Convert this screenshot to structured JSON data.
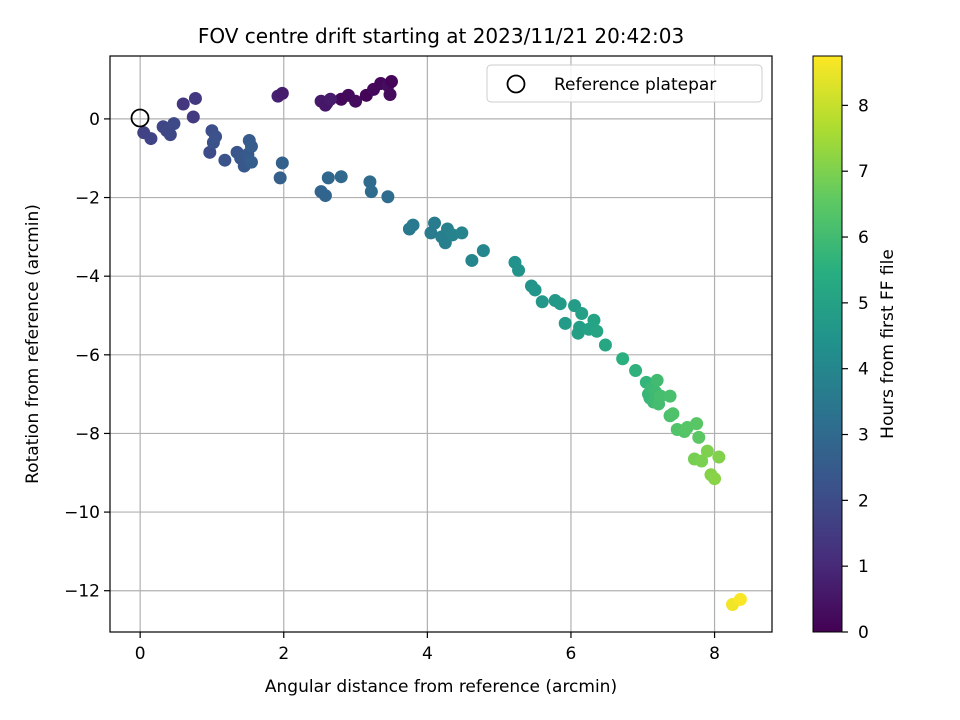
{
  "chart_data": {
    "type": "scatter",
    "title": "FOV centre drift starting at 2023/11/21 20:42:03",
    "xlabel": "Angular distance from reference (arcmin)",
    "ylabel": "Rotation from reference (arcmin)",
    "xlim": [
      -0.42,
      8.8
    ],
    "ylim": [
      -13.05,
      1.6
    ],
    "xticks": [
      0,
      2,
      4,
      6,
      8
    ],
    "yticks": [
      0,
      -2,
      -4,
      -6,
      -8,
      -10,
      -12
    ],
    "xtick_labels": [
      "0",
      "2",
      "4",
      "6",
      "8"
    ],
    "ytick_labels": [
      "0",
      "−2",
      "−4",
      "−6",
      "−8",
      "−10",
      "−12"
    ],
    "grid": true,
    "legend": {
      "placement": "upper right",
      "entries": [
        {
          "label": "Reference platepar",
          "marker": "open-circle"
        }
      ]
    },
    "reference_point": {
      "x": 0,
      "y": 0
    },
    "colorbar": {
      "label": "Hours from first FF file",
      "colormap": "viridis",
      "range": [
        0,
        8.75
      ],
      "ticks": [
        0,
        1,
        2,
        3,
        4,
        5,
        6,
        7,
        8
      ],
      "tick_labels": [
        "0",
        "1",
        "2",
        "3",
        "4",
        "5",
        "6",
        "7",
        "8"
      ]
    },
    "points": [
      {
        "x": 2.6,
        "y": 0.4,
        "c": 0.1
      },
      {
        "x": 2.8,
        "y": 0.5,
        "c": 0.15
      },
      {
        "x": 2.9,
        "y": 0.6,
        "c": 0.2
      },
      {
        "x": 3.0,
        "y": 0.45,
        "c": 0.25
      },
      {
        "x": 3.15,
        "y": 0.6,
        "c": 0.1
      },
      {
        "x": 3.25,
        "y": 0.75,
        "c": 0.2
      },
      {
        "x": 3.35,
        "y": 0.9,
        "c": 0.15
      },
      {
        "x": 3.45,
        "y": 0.85,
        "c": 0.3
      },
      {
        "x": 3.5,
        "y": 0.95,
        "c": 0.1
      },
      {
        "x": 3.48,
        "y": 0.62,
        "c": 0.25
      },
      {
        "x": 1.92,
        "y": 0.58,
        "c": 0.8
      },
      {
        "x": 1.98,
        "y": 0.65,
        "c": 0.7
      },
      {
        "x": 2.52,
        "y": 0.45,
        "c": 0.6
      },
      {
        "x": 2.58,
        "y": 0.35,
        "c": 0.55
      },
      {
        "x": 2.65,
        "y": 0.5,
        "c": 0.65
      },
      {
        "x": 0.6,
        "y": 0.38,
        "c": 1.35
      },
      {
        "x": 0.77,
        "y": 0.52,
        "c": 1.45
      },
      {
        "x": 0.74,
        "y": 0.05,
        "c": 1.5
      },
      {
        "x": 0.05,
        "y": -0.35,
        "c": 1.7
      },
      {
        "x": 0.15,
        "y": -0.5,
        "c": 1.75
      },
      {
        "x": 0.32,
        "y": -0.2,
        "c": 1.8
      },
      {
        "x": 0.37,
        "y": -0.3,
        "c": 1.85
      },
      {
        "x": 0.42,
        "y": -0.4,
        "c": 1.9
      },
      {
        "x": 0.47,
        "y": -0.12,
        "c": 1.95
      },
      {
        "x": 0.97,
        "y": -0.85,
        "c": 2.0
      },
      {
        "x": 1.0,
        "y": -0.3,
        "c": 2.1
      },
      {
        "x": 1.02,
        "y": -0.6,
        "c": 2.15
      },
      {
        "x": 1.05,
        "y": -0.45,
        "c": 2.2
      },
      {
        "x": 1.18,
        "y": -1.05,
        "c": 2.25
      },
      {
        "x": 1.35,
        "y": -0.85,
        "c": 2.3
      },
      {
        "x": 1.4,
        "y": -1.0,
        "c": 2.35
      },
      {
        "x": 1.45,
        "y": -1.2,
        "c": 2.4
      },
      {
        "x": 1.5,
        "y": -0.9,
        "c": 2.45
      },
      {
        "x": 1.52,
        "y": -0.55,
        "c": 2.5
      },
      {
        "x": 1.55,
        "y": -0.7,
        "c": 2.55
      },
      {
        "x": 1.55,
        "y": -1.1,
        "c": 2.6
      },
      {
        "x": 1.95,
        "y": -1.5,
        "c": 2.65
      },
      {
        "x": 1.98,
        "y": -1.12,
        "c": 2.7
      },
      {
        "x": 2.52,
        "y": -1.85,
        "c": 2.8
      },
      {
        "x": 2.58,
        "y": -1.95,
        "c": 2.85
      },
      {
        "x": 2.62,
        "y": -1.5,
        "c": 2.9
      },
      {
        "x": 2.8,
        "y": -1.47,
        "c": 2.95
      },
      {
        "x": 3.2,
        "y": -1.6,
        "c": 3.0
      },
      {
        "x": 3.22,
        "y": -1.85,
        "c": 3.05
      },
      {
        "x": 3.45,
        "y": -1.98,
        "c": 3.1
      },
      {
        "x": 3.75,
        "y": -2.8,
        "c": 3.5
      },
      {
        "x": 3.8,
        "y": -2.7,
        "c": 3.55
      },
      {
        "x": 4.05,
        "y": -2.9,
        "c": 3.6
      },
      {
        "x": 4.1,
        "y": -2.65,
        "c": 3.65
      },
      {
        "x": 4.2,
        "y": -3.0,
        "c": 3.7
      },
      {
        "x": 4.25,
        "y": -3.15,
        "c": 3.75
      },
      {
        "x": 4.28,
        "y": -2.8,
        "c": 3.8
      },
      {
        "x": 4.35,
        "y": -2.95,
        "c": 3.85
      },
      {
        "x": 4.48,
        "y": -2.9,
        "c": 3.9
      },
      {
        "x": 4.62,
        "y": -3.6,
        "c": 3.95
      },
      {
        "x": 4.78,
        "y": -3.35,
        "c": 4.0
      },
      {
        "x": 5.22,
        "y": -3.65,
        "c": 4.4
      },
      {
        "x": 5.27,
        "y": -3.85,
        "c": 4.45
      },
      {
        "x": 5.45,
        "y": -4.25,
        "c": 4.5
      },
      {
        "x": 5.5,
        "y": -4.35,
        "c": 4.55
      },
      {
        "x": 5.6,
        "y": -4.65,
        "c": 4.6
      },
      {
        "x": 5.78,
        "y": -4.62,
        "c": 4.65
      },
      {
        "x": 5.85,
        "y": -4.7,
        "c": 4.7
      },
      {
        "x": 5.92,
        "y": -5.2,
        "c": 4.75
      },
      {
        "x": 6.05,
        "y": -4.75,
        "c": 4.8
      },
      {
        "x": 6.12,
        "y": -5.3,
        "c": 4.85
      },
      {
        "x": 6.1,
        "y": -5.45,
        "c": 4.9
      },
      {
        "x": 6.15,
        "y": -4.95,
        "c": 4.95
      },
      {
        "x": 6.25,
        "y": -5.35,
        "c": 5.0
      },
      {
        "x": 6.32,
        "y": -5.12,
        "c": 5.05
      },
      {
        "x": 6.36,
        "y": -5.4,
        "c": 5.1
      },
      {
        "x": 6.48,
        "y": -5.75,
        "c": 5.15
      },
      {
        "x": 6.72,
        "y": -6.1,
        "c": 5.5
      },
      {
        "x": 6.9,
        "y": -6.4,
        "c": 5.6
      },
      {
        "x": 7.05,
        "y": -6.7,
        "c": 5.7
      },
      {
        "x": 7.08,
        "y": -7.0,
        "c": 5.75
      },
      {
        "x": 7.1,
        "y": -7.1,
        "c": 5.8
      },
      {
        "x": 7.12,
        "y": -6.85,
        "c": 5.85
      },
      {
        "x": 7.15,
        "y": -7.2,
        "c": 5.9
      },
      {
        "x": 7.18,
        "y": -6.95,
        "c": 5.95
      },
      {
        "x": 7.2,
        "y": -6.65,
        "c": 6.0
      },
      {
        "x": 7.22,
        "y": -7.25,
        "c": 6.05
      },
      {
        "x": 7.25,
        "y": -7.05,
        "c": 6.1
      },
      {
        "x": 7.38,
        "y": -7.05,
        "c": 6.15
      },
      {
        "x": 7.38,
        "y": -7.55,
        "c": 6.2
      },
      {
        "x": 7.42,
        "y": -7.5,
        "c": 6.25
      },
      {
        "x": 7.48,
        "y": -7.9,
        "c": 6.3
      },
      {
        "x": 7.58,
        "y": -7.95,
        "c": 6.35
      },
      {
        "x": 7.62,
        "y": -7.85,
        "c": 6.4
      },
      {
        "x": 7.75,
        "y": -7.75,
        "c": 6.45
      },
      {
        "x": 7.78,
        "y": -8.1,
        "c": 6.5
      },
      {
        "x": 7.72,
        "y": -8.65,
        "c": 6.9
      },
      {
        "x": 7.82,
        "y": -8.7,
        "c": 6.95
      },
      {
        "x": 7.9,
        "y": -8.45,
        "c": 7.0
      },
      {
        "x": 8.06,
        "y": -8.6,
        "c": 7.05
      },
      {
        "x": 7.95,
        "y": -9.05,
        "c": 7.1
      },
      {
        "x": 8.0,
        "y": -9.15,
        "c": 7.15
      },
      {
        "x": 8.25,
        "y": -12.35,
        "c": 8.6
      },
      {
        "x": 8.36,
        "y": -12.22,
        "c": 8.7
      }
    ]
  }
}
